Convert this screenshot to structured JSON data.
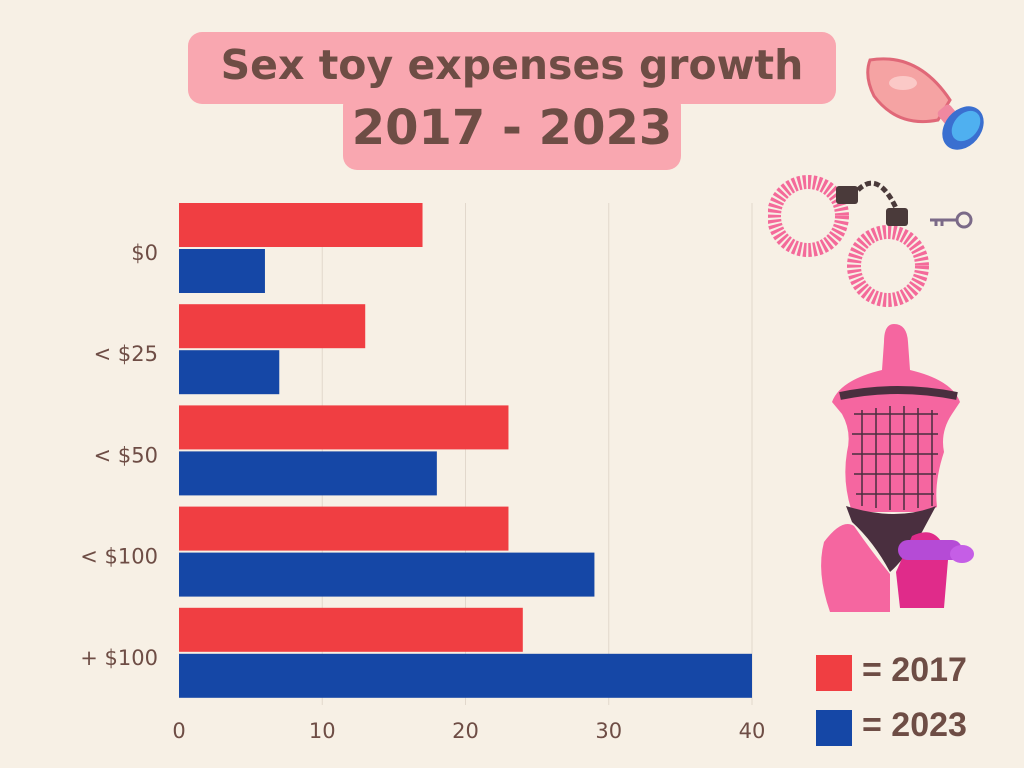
{
  "title": {
    "line1": "Sex toy expenses growth",
    "line2": "2017 - 2023"
  },
  "colors": {
    "background": "#f7f0e5",
    "title_box": "#f9a7b0",
    "text": "#6e4d45",
    "s2017": "#f03e42",
    "s2023": "#1547a6",
    "grid": "#e2d8cc"
  },
  "chart_data": {
    "type": "bar",
    "orientation": "horizontal",
    "categories": [
      "$0",
      "< $25",
      "< $50",
      "< $100",
      "+ $100"
    ],
    "series": [
      {
        "name": "2017",
        "color": "#f03e42",
        "values": [
          17,
          13,
          23,
          23,
          24
        ]
      },
      {
        "name": "2023",
        "color": "#1547a6",
        "values": [
          6,
          7,
          18,
          29,
          40
        ]
      }
    ],
    "x_ticks": [
      0,
      10,
      20,
      30,
      40
    ],
    "xlim": [
      0,
      40
    ],
    "grid": true,
    "legend_position": "bottom-right"
  },
  "legend": [
    {
      "label": "= 2017",
      "color": "#f03e42"
    },
    {
      "label": "= 2023",
      "color": "#1547a6"
    }
  ],
  "illustrations": [
    "butt-plug-icon",
    "fuzzy-handcuffs-icon",
    "key-icon",
    "mannequin-strap-on-icon"
  ]
}
